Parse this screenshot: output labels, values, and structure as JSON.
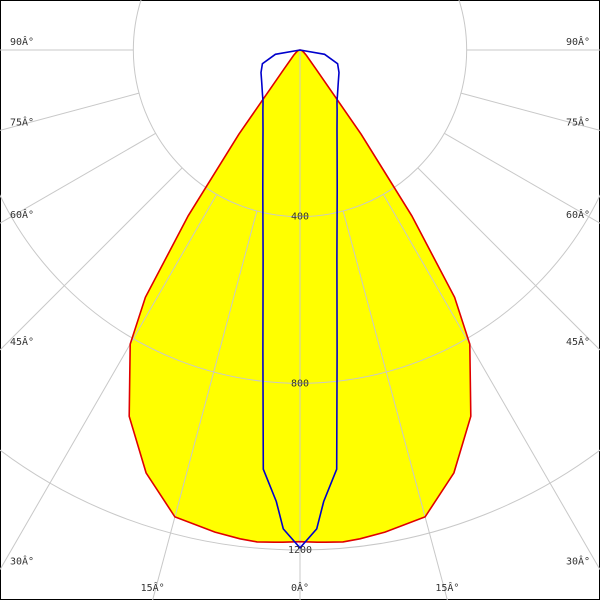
{
  "chart_data": {
    "type": "polar",
    "angles": [
      -90,
      -80,
      -70,
      -60,
      -50,
      -40,
      -36,
      -34,
      -32,
      -30,
      -25,
      -20,
      -15,
      -10,
      -7,
      -5,
      -3,
      -2,
      0,
      2,
      3,
      5,
      7,
      10,
      15,
      20,
      25,
      30,
      32,
      34,
      36,
      40,
      50,
      60,
      70,
      80,
      90
    ],
    "series": [
      {
        "color": "#e00000",
        "fill": "#ffff00",
        "values": [
          0,
          2,
          5,
          10,
          20,
          60,
          250,
          480,
          700,
          815,
          970,
          1080,
          1160,
          1175,
          1182,
          1185,
          1183,
          1182,
          1180,
          1182,
          1183,
          1185,
          1182,
          1175,
          1160,
          1080,
          970,
          815,
          700,
          480,
          250,
          60,
          20,
          10,
          5,
          2,
          0
        ]
      },
      {
        "color": "#0000cc",
        "values": [
          0,
          60,
          96,
          108,
          120,
          140,
          151,
          159,
          168,
          178,
          210,
          260,
          345,
          510,
          730,
          1010,
          1085,
          1150,
          1195,
          1150,
          1085,
          1010,
          730,
          510,
          345,
          260,
          210,
          178,
          168,
          159,
          151,
          140,
          120,
          108,
          96,
          60,
          0
        ]
      }
    ],
    "rlim": [
      0,
      1200
    ],
    "rticks": [
      400,
      800,
      1200
    ],
    "angle_ticks": [
      {
        "value": -90,
        "label": "90Â°"
      },
      {
        "value": -75,
        "label": "75Â°"
      },
      {
        "value": -60,
        "label": "60Â°"
      },
      {
        "value": -45,
        "label": "45Â°"
      },
      {
        "value": -30,
        "label": "30Â°"
      },
      {
        "value": -15,
        "label": "15Â°"
      },
      {
        "value": 0,
        "label": "0Â°"
      },
      {
        "value": 15,
        "label": "15Â°"
      },
      {
        "value": 30,
        "label": "30Â°"
      },
      {
        "value": 45,
        "label": "45Â°"
      },
      {
        "value": 60,
        "label": "60Â°"
      },
      {
        "value": 75,
        "label": "75Â°"
      },
      {
        "value": 90,
        "label": "90Â°"
      }
    ]
  }
}
